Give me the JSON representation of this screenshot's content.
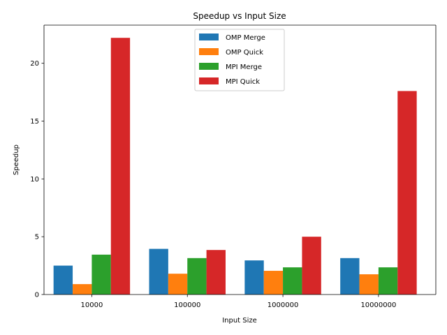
{
  "chart_data": {
    "type": "bar",
    "title": "Speedup vs Input Size",
    "xlabel": "Input Size",
    "ylabel": "Speedup",
    "categories": [
      "10000",
      "100000",
      "1000000",
      "10000000"
    ],
    "ylim": [
      0,
      23.3
    ],
    "yticks": [
      0,
      5,
      10,
      15,
      20
    ],
    "grid": false,
    "legend_position": "top-center",
    "series": [
      {
        "name": "OMP Merge",
        "color": "#1f77b4",
        "values": [
          2.5,
          3.95,
          2.95,
          3.15
        ]
      },
      {
        "name": "OMP Quick",
        "color": "#ff7f0e",
        "values": [
          0.9,
          1.8,
          2.05,
          1.75
        ]
      },
      {
        "name": "MPI Merge",
        "color": "#2ca02c",
        "values": [
          3.45,
          3.15,
          2.35,
          2.35
        ]
      },
      {
        "name": "MPI Quick",
        "color": "#d62728",
        "values": [
          22.2,
          3.85,
          5.0,
          17.6
        ]
      }
    ]
  }
}
